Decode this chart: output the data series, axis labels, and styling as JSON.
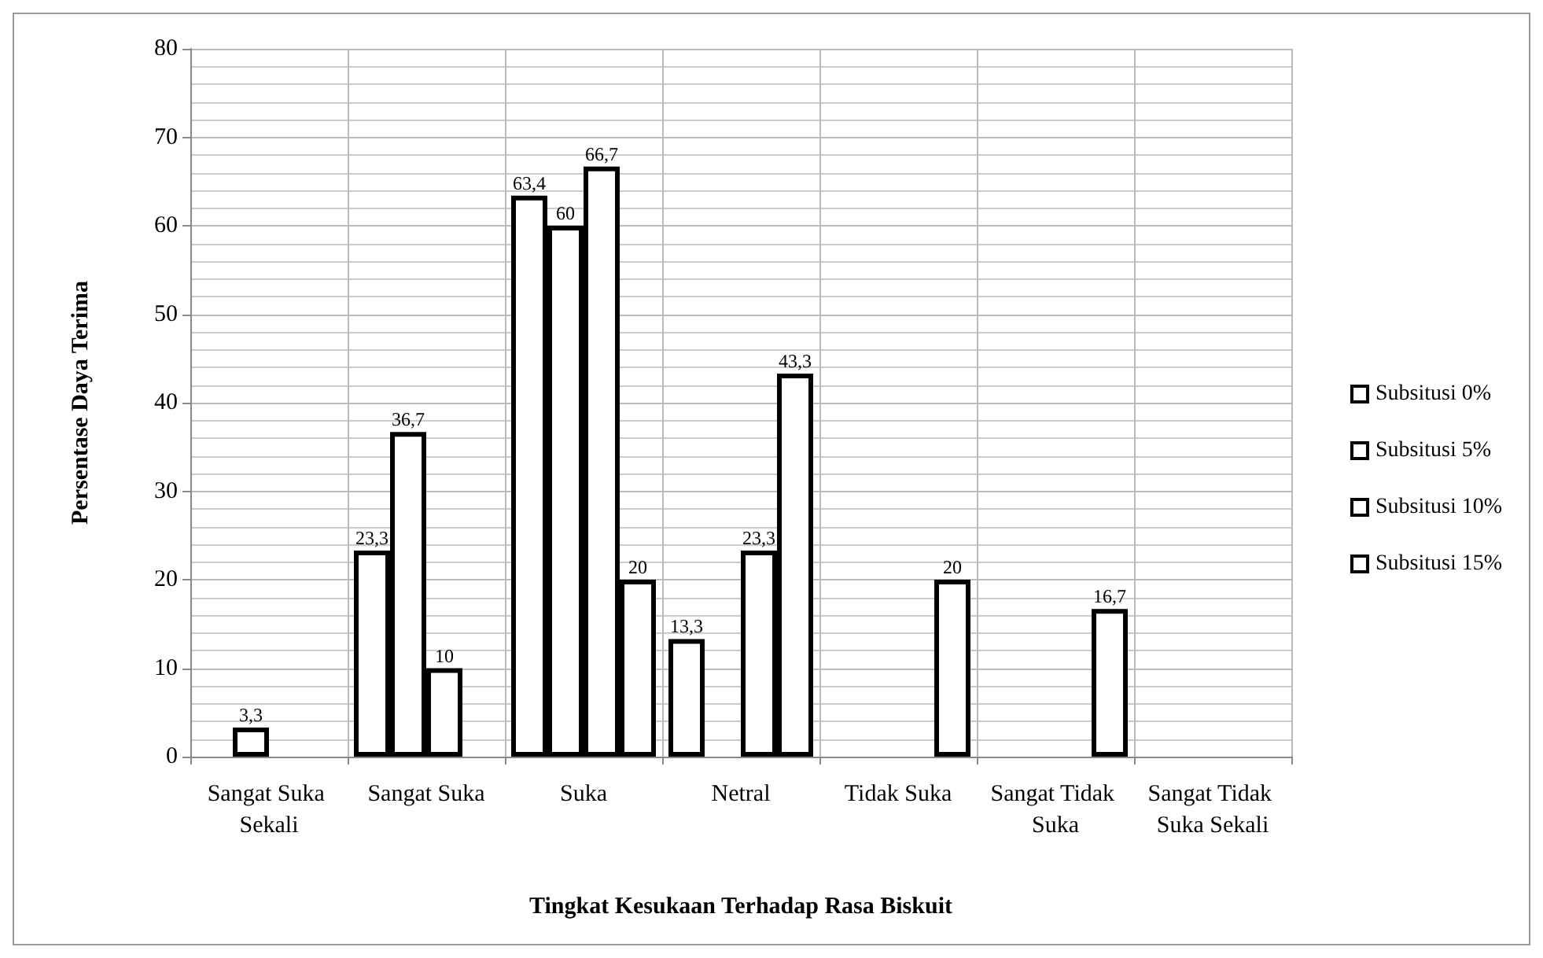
{
  "chart_data": {
    "type": "bar",
    "xlabel": "Tingkat Kesukaan Terhadap Rasa Biskuit",
    "ylabel": "Persentase Daya Terima",
    "categories": [
      "Sangat Suka Sekali",
      "Sangat Suka",
      "Suka",
      "Netral",
      "Tidak Suka",
      "Sangat Tidak Suka",
      "Sangat Tidak Suka Sekali"
    ],
    "series": [
      {
        "name": "Subsitusi 0%",
        "color": "#ffffff",
        "values": [
          null,
          23.3,
          63.4,
          13.3,
          null,
          null,
          null
        ],
        "value_labels": [
          null,
          "23,3",
          "63,4",
          "13,3",
          null,
          null,
          null
        ]
      },
      {
        "name": "Subsitusi 5%",
        "color": "#ffffff",
        "values": [
          3.3,
          36.7,
          60,
          null,
          null,
          null,
          null
        ],
        "value_labels": [
          "3,3",
          "36,7",
          "60",
          null,
          null,
          null,
          null
        ]
      },
      {
        "name": "Subsitusi 10%",
        "color": "#ffffff",
        "values": [
          null,
          10,
          66.7,
          23.3,
          null,
          null,
          null
        ],
        "value_labels": [
          null,
          "10",
          "66,7",
          "23,3",
          null,
          null,
          null
        ]
      },
      {
        "name": "Subsitusi 15%",
        "color": "#ffffff",
        "values": [
          null,
          null,
          20,
          43.3,
          20,
          16.7,
          null
        ],
        "value_labels": [
          null,
          null,
          "20",
          "43,3",
          "20",
          "16,7",
          null
        ]
      }
    ],
    "ylim": [
      0,
      80
    ],
    "yticks": [
      0,
      10,
      20,
      30,
      40,
      50,
      60,
      70,
      80
    ],
    "grid": true,
    "legend": "right"
  }
}
